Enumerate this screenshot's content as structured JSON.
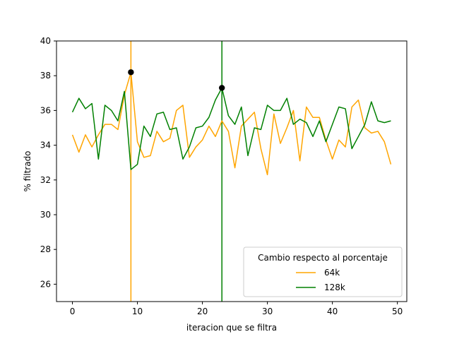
{
  "chart_data": {
    "type": "line",
    "title": "",
    "xlabel": "iteracion que se filtra",
    "ylabel": "% filtrado",
    "xlim": [
      -2.45,
      51.45
    ],
    "ylim": [
      25,
      40
    ],
    "xticks": [
      0,
      10,
      20,
      30,
      40,
      50
    ],
    "yticks": [
      26,
      28,
      30,
      32,
      34,
      36,
      38,
      40
    ],
    "grid": false,
    "legend": {
      "title": "Cambio respecto al porcentaje",
      "placement": "lower-right"
    },
    "x": [
      0,
      1,
      2,
      3,
      4,
      5,
      6,
      7,
      8,
      9,
      10,
      11,
      12,
      13,
      14,
      15,
      16,
      17,
      18,
      19,
      20,
      21,
      22,
      23,
      24,
      25,
      26,
      27,
      28,
      29,
      30,
      31,
      32,
      33,
      34,
      35,
      36,
      37,
      38,
      39,
      40,
      41,
      42,
      43,
      44,
      45,
      46,
      47,
      48,
      49
    ],
    "series": [
      {
        "name": "64k",
        "color": "#ffa500",
        "values": [
          34.6,
          33.6,
          34.6,
          33.9,
          34.6,
          35.2,
          35.2,
          34.9,
          36.9,
          38.2,
          34.2,
          33.3,
          33.4,
          34.8,
          34.2,
          34.4,
          36.0,
          36.3,
          33.3,
          33.9,
          34.3,
          35.1,
          34.5,
          35.4,
          34.8,
          32.7,
          35.1,
          35.5,
          35.9,
          33.8,
          32.3,
          35.8,
          34.1,
          35.0,
          36.0,
          33.1,
          36.2,
          35.6,
          35.6,
          34.3,
          33.2,
          34.3,
          33.9,
          36.2,
          36.6,
          35.0,
          34.7,
          34.8,
          34.2,
          32.9
        ]
      },
      {
        "name": "128k",
        "color": "#008000",
        "values": [
          35.9,
          36.7,
          36.1,
          36.4,
          33.2,
          36.3,
          36.0,
          35.4,
          37.1,
          32.6,
          32.9,
          35.1,
          34.5,
          35.8,
          35.9,
          34.9,
          35.0,
          33.2,
          33.9,
          35.0,
          35.1,
          35.6,
          36.6,
          37.3,
          35.7,
          35.2,
          36.2,
          33.4,
          35.0,
          34.9,
          36.3,
          36.0,
          36.0,
          36.7,
          35.2,
          35.5,
          35.3,
          34.5,
          35.4,
          34.2,
          35.2,
          36.2,
          36.1,
          33.8,
          34.5,
          35.2,
          36.5,
          35.4,
          35.3,
          35.4
        ]
      }
    ],
    "vlines": [
      {
        "x": 9,
        "color": "#ffa500",
        "series": "64k"
      },
      {
        "x": 23,
        "color": "#008000",
        "series": "128k"
      }
    ],
    "markers": [
      {
        "x": 9,
        "y": 38.2,
        "color": "#000000"
      },
      {
        "x": 23,
        "y": 37.3,
        "color": "#000000"
      }
    ]
  }
}
